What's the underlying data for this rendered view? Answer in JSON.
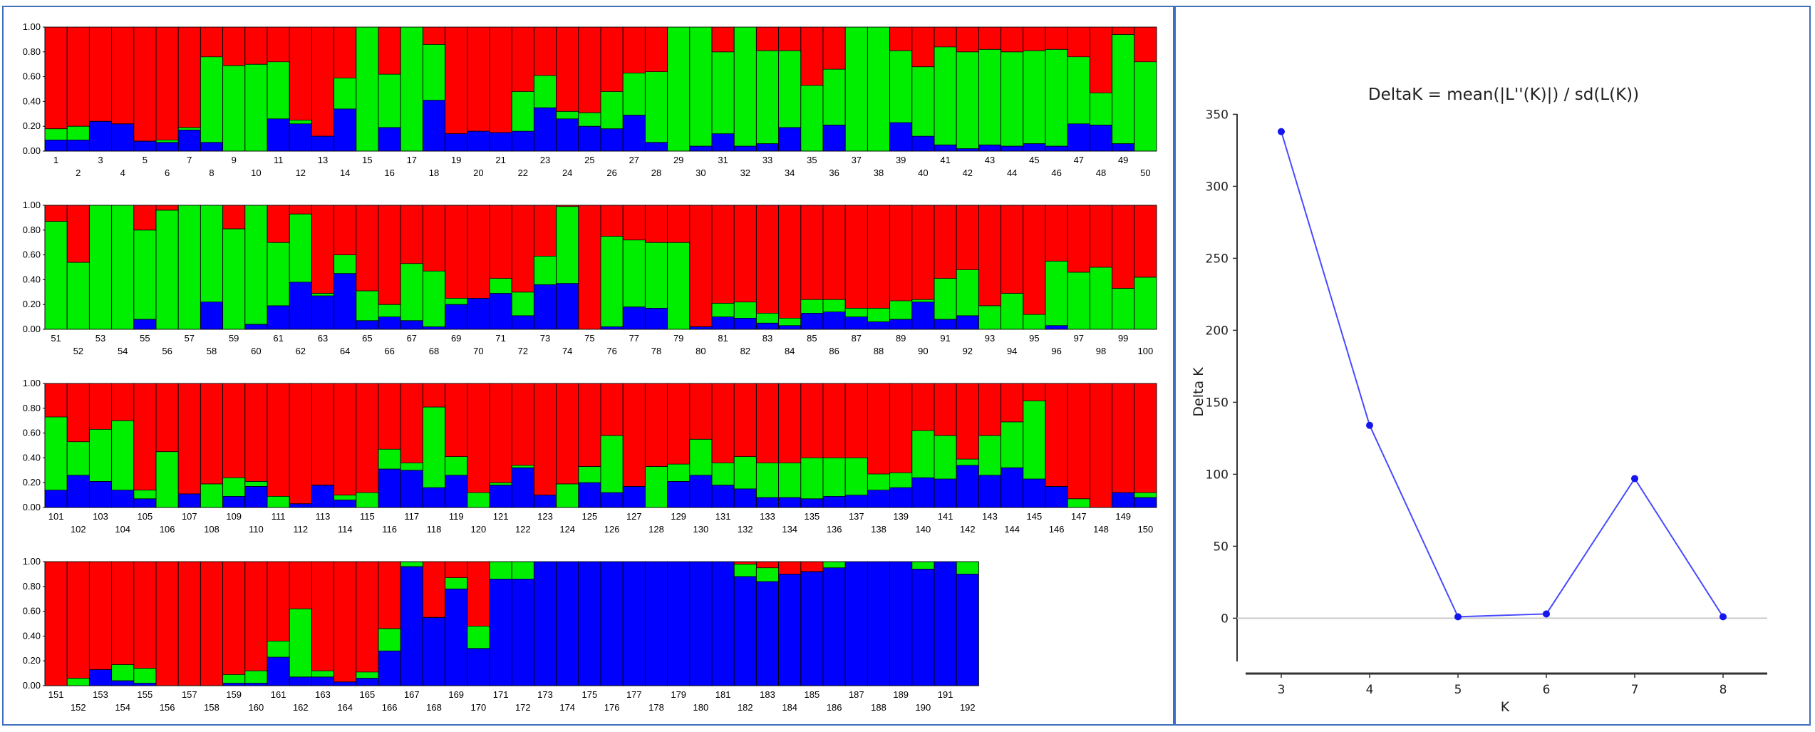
{
  "colors": {
    "red": "#ff0000",
    "green": "#00ee00",
    "blue": "#0000ff",
    "frame": "#3f6fc0",
    "line": "#4a4aff"
  },
  "chart_data": [
    {
      "type": "bar",
      "subtype": "stacked-100",
      "description_series_order": "bottom to top: blue, green, red",
      "yticks": [
        "0.00",
        "0.20",
        "0.40",
        "0.60",
        "0.80",
        "1.00"
      ],
      "ylim": [
        0,
        1
      ],
      "rows": [
        {
          "start": 1,
          "count": 50,
          "blue": [
            0.09,
            0.09,
            0.24,
            0.22,
            0.08,
            0.07,
            0.17,
            0.07,
            0,
            0,
            0.26,
            0.22,
            0.12,
            0.34,
            0,
            0.19,
            0,
            0.41,
            0.14,
            0.16,
            0.15,
            0.16,
            0.35,
            0.26,
            0.2,
            0.18,
            0.29,
            0.07,
            0,
            0.04,
            0.14,
            0.04,
            0.06,
            0.19,
            0,
            0.21,
            0,
            0,
            0.23,
            0.12,
            0.05,
            0.02,
            0.05,
            0.04,
            0.06,
            0.04,
            0.22,
            0.21,
            0.06,
            0
          ],
          "green": [
            0.09,
            0.11,
            0,
            0,
            0,
            0.02,
            0.02,
            0.69,
            0.69,
            0.7,
            0.46,
            0.03,
            0,
            0.25,
            1.0,
            0.43,
            1.0,
            0.45,
            0,
            0,
            0,
            0.32,
            0.26,
            0.06,
            0.11,
            0.3,
            0.34,
            0.57,
            1.0,
            0.96,
            0.66,
            0.96,
            0.75,
            0.62,
            0.53,
            0.45,
            1.0,
            1.0,
            0.58,
            0.56,
            0.79,
            0.78,
            0.77,
            0.76,
            0.75,
            0.78,
            0.54,
            0.26,
            0.88,
            0.72
          ]
        },
        {
          "start": 51,
          "count": 50,
          "blue": [
            0,
            0,
            0,
            0,
            0.08,
            0,
            0,
            0.22,
            0,
            0.04,
            0.19,
            0.38,
            0.27,
            0.45,
            0.07,
            0.1,
            0.07,
            0.02,
            0.2,
            0.25,
            0.29,
            0.11,
            0.36,
            0.37,
            0,
            0.02,
            0.18,
            0.17,
            0,
            0.02,
            0.1,
            0.09,
            0.05,
            0.03,
            0.13,
            0.14,
            0.1,
            0.06,
            0.08,
            0.22,
            0.08,
            0.11,
            0,
            0,
            0,
            0.03,
            0,
            0,
            0,
            0
          ],
          "green": [
            0.87,
            0.54,
            1.0,
            1.0,
            0.72,
            0.96,
            1.0,
            0.78,
            0.81,
            0.96,
            0.51,
            0.55,
            0.02,
            0.15,
            0.24,
            0.1,
            0.46,
            0.45,
            0.05,
            0,
            0.12,
            0.19,
            0.23,
            0.62,
            0,
            0.73,
            0.54,
            0.53,
            0.7,
            0,
            0.11,
            0.13,
            0.08,
            0.06,
            0.11,
            0.1,
            0.07,
            0.11,
            0.15,
            0.02,
            0.33,
            0.37,
            0.19,
            0.29,
            0.12,
            0.52,
            0.46,
            0.5,
            0.33,
            0.42
          ]
        },
        {
          "start": 101,
          "count": 50,
          "blue": [
            0.14,
            0.26,
            0.21,
            0.14,
            0.07,
            0,
            0.11,
            0,
            0.09,
            0.17,
            0,
            0.03,
            0.18,
            0.06,
            0,
            0.31,
            0.3,
            0.16,
            0.26,
            0,
            0.18,
            0.32,
            0.1,
            0,
            0.2,
            0.12,
            0.17,
            0,
            0.21,
            0.26,
            0.18,
            0.15,
            0.08,
            0.08,
            0.07,
            0.09,
            0.1,
            0.14,
            0.16,
            0.24,
            0.23,
            0.34,
            0.26,
            0.32,
            0.23,
            0.17,
            0,
            0,
            0.12,
            0.08
          ],
          "green": [
            0.59,
            0.27,
            0.42,
            0.56,
            0.07,
            0.45,
            0,
            0.19,
            0.15,
            0.04,
            0.09,
            0,
            0,
            0.04,
            0.12,
            0.16,
            0.06,
            0.65,
            0.15,
            0.12,
            0.02,
            0.02,
            0,
            0.19,
            0.13,
            0.46,
            0,
            0.33,
            0.14,
            0.29,
            0.18,
            0.26,
            0.28,
            0.28,
            0.33,
            0.31,
            0.3,
            0.13,
            0.12,
            0.38,
            0.35,
            0.05,
            0.32,
            0.37,
            0.63,
            0,
            0.07,
            0,
            0,
            0.04
          ]
        },
        {
          "start": 151,
          "count": 42,
          "blue": [
            0,
            0,
            0.13,
            0.04,
            0.02,
            0,
            0,
            0,
            0.02,
            0.02,
            0.23,
            0.07,
            0.07,
            0.03,
            0.06,
            0.28,
            0.96,
            0.55,
            0.78,
            0.3,
            0.86,
            0.86,
            1.0,
            1.0,
            1.0,
            1.0,
            1.0,
            1.0,
            1.0,
            1.0,
            1.0,
            0.88,
            0.84,
            0.9,
            0.92,
            0.95,
            1.0,
            1.0,
            1.0,
            0.94,
            1.0,
            0.9
          ],
          "green": [
            0,
            0.06,
            0,
            0.13,
            0.12,
            0,
            0,
            0,
            0.07,
            0.1,
            0.13,
            0.55,
            0.05,
            0,
            0.05,
            0.18,
            0.04,
            0,
            0.09,
            0.18,
            0.14,
            0.14,
            0,
            0,
            0,
            0,
            0,
            0,
            0,
            0,
            0,
            0.1,
            0.11,
            0,
            0,
            0.05,
            0,
            0,
            0,
            0.06,
            0,
            0.1
          ]
        }
      ]
    },
    {
      "type": "line",
      "title": "DeltaK = mean(|L''(K)|) / sd(L(K))",
      "xlabel": "K",
      "ylabel": "Delta K",
      "x": [
        3,
        4,
        5,
        6,
        7,
        8
      ],
      "y": [
        338,
        134,
        1,
        3,
        97,
        1
      ],
      "xticks": [
        "3",
        "4",
        "5",
        "6",
        "7",
        "8"
      ],
      "yticks": [
        "0",
        "50",
        "100",
        "150",
        "200",
        "250",
        "300",
        "350"
      ],
      "ylim": [
        -30,
        370
      ],
      "xlim": [
        2.5,
        8.5
      ],
      "grid": false
    }
  ]
}
